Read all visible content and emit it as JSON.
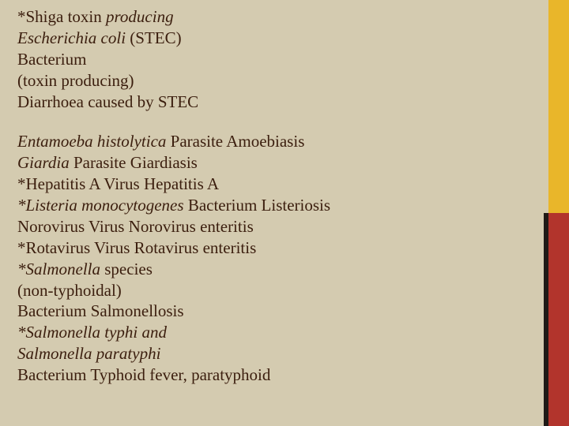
{
  "colors": {
    "background": "#d4cbb0",
    "text": "#3b1e0e",
    "sidebar_yellow": "#e9b62a",
    "sidebar_red": "#b2342c",
    "sidebar_dark": "#1f1a16"
  },
  "typography": {
    "font_family": "Georgia, Times New Roman, serif",
    "font_size_pt": 16,
    "line_height": 1.28
  },
  "block1": {
    "l1a": "*Shiga toxin ",
    "l1b": "producing",
    "l2a": "Escherichia coli",
    "l2b": " (STEC)",
    "l3": "Bacterium",
    "l4": "(toxin producing)",
    "l5": "Diarrhoea caused by STEC"
  },
  "block2": {
    "l1a": "Entamoeba histolytica",
    "l1b": " Parasite Amoebiasis",
    "l2a": "Giardia",
    "l2b": " Parasite Giardiasis",
    "l3": "*Hepatitis A Virus Hepatitis A",
    "l4a": "*Listeria monocytogenes",
    "l4b": " Bacterium Listeriosis",
    "l5": "Norovirus Virus Norovirus enteritis",
    "l6": "*Rotavirus Virus Rotavirus enteritis",
    "l7a": "*Salmonella",
    "l7b": " species",
    "l8": "(non-typhoidal)",
    "l9": "Bacterium Salmonellosis",
    "l10a": "*Salmonella typhi and",
    "l11a": "Salmonella paratyphi",
    "l12": "Bacterium Typhoid fever, paratyphoid"
  }
}
